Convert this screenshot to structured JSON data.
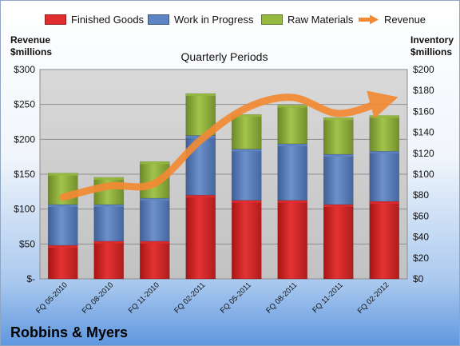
{
  "company": "Robbins & Myers",
  "left_axis_title": "Revenue\n$millions",
  "right_axis_title": "Inventory\n$millions",
  "subtitle": "Quarterly Periods",
  "colors": {
    "finished_goods": "#e02d2d",
    "work_in_progress": "#5f84c2",
    "raw_materials": "#95b83f",
    "revenue": "#f28a33"
  },
  "chart_data": {
    "type": "bar",
    "stacked": true,
    "title": "Quarterly Periods",
    "categories": [
      "FQ 05-2010",
      "FQ 08-2010",
      "FQ 11-2010",
      "FQ 02-2011",
      "FQ 05-2011",
      "FQ 08-2011",
      "FQ 11-2011",
      "FQ 02-2012"
    ],
    "series": [
      {
        "name": "Finished Goods",
        "axis": "right",
        "values": [
          32,
          36,
          36,
          80,
          75,
          75,
          71,
          74
        ]
      },
      {
        "name": "Work in Progress",
        "axis": "right",
        "values": [
          39,
          35,
          41,
          57,
          49,
          54,
          48,
          48
        ]
      },
      {
        "name": "Raw Materials",
        "axis": "right",
        "values": [
          30,
          26,
          35,
          40,
          33,
          37,
          35,
          34
        ]
      },
      {
        "name": "Revenue",
        "type": "line",
        "axis": "left",
        "values": [
          117,
          133,
          137,
          199,
          245,
          260,
          237,
          255
        ]
      }
    ],
    "ylabel_left": "Revenue $millions",
    "ylabel_right": "Inventory $millions",
    "ylim_left": [
      0,
      300
    ],
    "ylim_right": [
      0,
      200
    ],
    "yticks_left": [
      "$-",
      "$50",
      "$100",
      "$150",
      "$200",
      "$250",
      "$300"
    ],
    "yticks_right": [
      "$0",
      "$20",
      "$40",
      "$60",
      "$80",
      "$100",
      "$120",
      "$140",
      "$160",
      "$180",
      "$200"
    ],
    "legend_position": "top",
    "grid": true
  }
}
